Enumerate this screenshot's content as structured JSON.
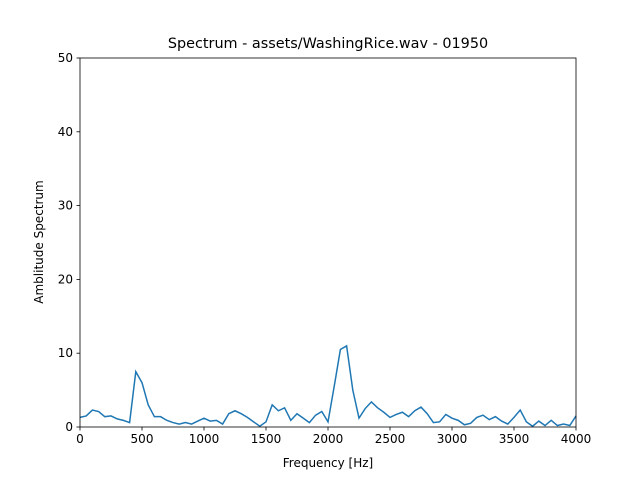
{
  "chart_data": {
    "type": "line",
    "title": "Spectrum - assets/WashingRice.wav - 01950",
    "xlabel": "Frequency [Hz]",
    "ylabel": "Amblitude Spectrum",
    "x": [
      0,
      50,
      100,
      150,
      200,
      250,
      300,
      350,
      400,
      450,
      500,
      550,
      600,
      650,
      700,
      750,
      800,
      850,
      900,
      950,
      1000,
      1050,
      1100,
      1150,
      1200,
      1250,
      1300,
      1350,
      1400,
      1450,
      1500,
      1550,
      1600,
      1650,
      1700,
      1750,
      1800,
      1850,
      1900,
      1950,
      2000,
      2050,
      2100,
      2150,
      2200,
      2250,
      2300,
      2350,
      2400,
      2450,
      2500,
      2550,
      2600,
      2650,
      2700,
      2750,
      2800,
      2850,
      2900,
      2950,
      3000,
      3050,
      3100,
      3150,
      3200,
      3250,
      3300,
      3350,
      3400,
      3450,
      3500,
      3550,
      3600,
      3650,
      3700,
      3750,
      3800,
      3850,
      3900,
      3950,
      4000
    ],
    "series": [
      {
        "color": "#1f77b4",
        "values": [
          1.3,
          1.5,
          2.3,
          2.1,
          1.4,
          1.5,
          1.1,
          0.9,
          0.6,
          7.5,
          6.0,
          3.0,
          1.4,
          1.4,
          0.9,
          0.6,
          0.4,
          0.6,
          0.4,
          0.8,
          1.2,
          0.8,
          0.9,
          0.4,
          1.8,
          2.2,
          1.8,
          1.3,
          0.7,
          0.1,
          0.7,
          3.0,
          2.2,
          2.6,
          0.9,
          1.8,
          1.2,
          0.6,
          1.6,
          2.1,
          0.7,
          5.5,
          10.5,
          11.0,
          5.0,
          1.2,
          2.5,
          3.4,
          2.6,
          2.0,
          1.3,
          1.7,
          2.0,
          1.4,
          2.2,
          2.7,
          1.8,
          0.6,
          0.7,
          1.7,
          1.2,
          0.9,
          0.3,
          0.5,
          1.3,
          1.6,
          1.0,
          1.4,
          0.8,
          0.4,
          1.3,
          2.3,
          0.7,
          0.1,
          0.8,
          0.2,
          0.9,
          0.2,
          0.4,
          0.2,
          1.5
        ]
      }
    ],
    "xlim": [
      0,
      4000
    ],
    "xticks": [
      0,
      500,
      1000,
      1500,
      2000,
      2500,
      3000,
      3500,
      4000
    ],
    "ylim": [
      0,
      50
    ],
    "yticks": [
      0,
      10,
      20,
      30,
      40,
      50
    ]
  }
}
